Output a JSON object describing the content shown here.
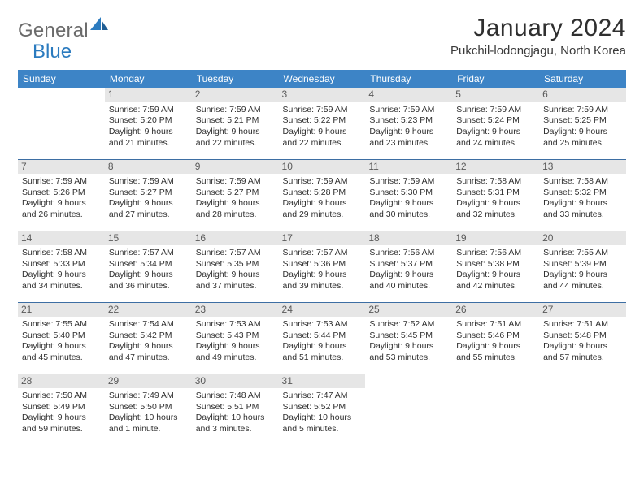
{
  "logo": {
    "word1": "General",
    "word2": "Blue"
  },
  "title": "January 2024",
  "location": "Pukchil-lodongjagu, North Korea",
  "colors": {
    "header_bg": "#3d84c6",
    "header_text": "#ffffff",
    "daynum_bg": "#e6e6e6",
    "daynum_text": "#5a5a5a",
    "row_border": "#3d6ea3",
    "logo_gray": "#6b6b6b",
    "logo_blue": "#2b7bbf"
  },
  "weekday_labels": [
    "Sunday",
    "Monday",
    "Tuesday",
    "Wednesday",
    "Thursday",
    "Friday",
    "Saturday"
  ],
  "first_weekday_index": 1,
  "days": [
    {
      "n": 1,
      "sunrise": "7:59 AM",
      "sunset": "5:20 PM",
      "daylight": "9 hours and 21 minutes."
    },
    {
      "n": 2,
      "sunrise": "7:59 AM",
      "sunset": "5:21 PM",
      "daylight": "9 hours and 22 minutes."
    },
    {
      "n": 3,
      "sunrise": "7:59 AM",
      "sunset": "5:22 PM",
      "daylight": "9 hours and 22 minutes."
    },
    {
      "n": 4,
      "sunrise": "7:59 AM",
      "sunset": "5:23 PM",
      "daylight": "9 hours and 23 minutes."
    },
    {
      "n": 5,
      "sunrise": "7:59 AM",
      "sunset": "5:24 PM",
      "daylight": "9 hours and 24 minutes."
    },
    {
      "n": 6,
      "sunrise": "7:59 AM",
      "sunset": "5:25 PM",
      "daylight": "9 hours and 25 minutes."
    },
    {
      "n": 7,
      "sunrise": "7:59 AM",
      "sunset": "5:26 PM",
      "daylight": "9 hours and 26 minutes."
    },
    {
      "n": 8,
      "sunrise": "7:59 AM",
      "sunset": "5:27 PM",
      "daylight": "9 hours and 27 minutes."
    },
    {
      "n": 9,
      "sunrise": "7:59 AM",
      "sunset": "5:27 PM",
      "daylight": "9 hours and 28 minutes."
    },
    {
      "n": 10,
      "sunrise": "7:59 AM",
      "sunset": "5:28 PM",
      "daylight": "9 hours and 29 minutes."
    },
    {
      "n": 11,
      "sunrise": "7:59 AM",
      "sunset": "5:30 PM",
      "daylight": "9 hours and 30 minutes."
    },
    {
      "n": 12,
      "sunrise": "7:58 AM",
      "sunset": "5:31 PM",
      "daylight": "9 hours and 32 minutes."
    },
    {
      "n": 13,
      "sunrise": "7:58 AM",
      "sunset": "5:32 PM",
      "daylight": "9 hours and 33 minutes."
    },
    {
      "n": 14,
      "sunrise": "7:58 AM",
      "sunset": "5:33 PM",
      "daylight": "9 hours and 34 minutes."
    },
    {
      "n": 15,
      "sunrise": "7:57 AM",
      "sunset": "5:34 PM",
      "daylight": "9 hours and 36 minutes."
    },
    {
      "n": 16,
      "sunrise": "7:57 AM",
      "sunset": "5:35 PM",
      "daylight": "9 hours and 37 minutes."
    },
    {
      "n": 17,
      "sunrise": "7:57 AM",
      "sunset": "5:36 PM",
      "daylight": "9 hours and 39 minutes."
    },
    {
      "n": 18,
      "sunrise": "7:56 AM",
      "sunset": "5:37 PM",
      "daylight": "9 hours and 40 minutes."
    },
    {
      "n": 19,
      "sunrise": "7:56 AM",
      "sunset": "5:38 PM",
      "daylight": "9 hours and 42 minutes."
    },
    {
      "n": 20,
      "sunrise": "7:55 AM",
      "sunset": "5:39 PM",
      "daylight": "9 hours and 44 minutes."
    },
    {
      "n": 21,
      "sunrise": "7:55 AM",
      "sunset": "5:40 PM",
      "daylight": "9 hours and 45 minutes."
    },
    {
      "n": 22,
      "sunrise": "7:54 AM",
      "sunset": "5:42 PM",
      "daylight": "9 hours and 47 minutes."
    },
    {
      "n": 23,
      "sunrise": "7:53 AM",
      "sunset": "5:43 PM",
      "daylight": "9 hours and 49 minutes."
    },
    {
      "n": 24,
      "sunrise": "7:53 AM",
      "sunset": "5:44 PM",
      "daylight": "9 hours and 51 minutes."
    },
    {
      "n": 25,
      "sunrise": "7:52 AM",
      "sunset": "5:45 PM",
      "daylight": "9 hours and 53 minutes."
    },
    {
      "n": 26,
      "sunrise": "7:51 AM",
      "sunset": "5:46 PM",
      "daylight": "9 hours and 55 minutes."
    },
    {
      "n": 27,
      "sunrise": "7:51 AM",
      "sunset": "5:48 PM",
      "daylight": "9 hours and 57 minutes."
    },
    {
      "n": 28,
      "sunrise": "7:50 AM",
      "sunset": "5:49 PM",
      "daylight": "9 hours and 59 minutes."
    },
    {
      "n": 29,
      "sunrise": "7:49 AM",
      "sunset": "5:50 PM",
      "daylight": "10 hours and 1 minute."
    },
    {
      "n": 30,
      "sunrise": "7:48 AM",
      "sunset": "5:51 PM",
      "daylight": "10 hours and 3 minutes."
    },
    {
      "n": 31,
      "sunrise": "7:47 AM",
      "sunset": "5:52 PM",
      "daylight": "10 hours and 5 minutes."
    }
  ],
  "labels": {
    "sunrise": "Sunrise:",
    "sunset": "Sunset:",
    "daylight": "Daylight:"
  }
}
